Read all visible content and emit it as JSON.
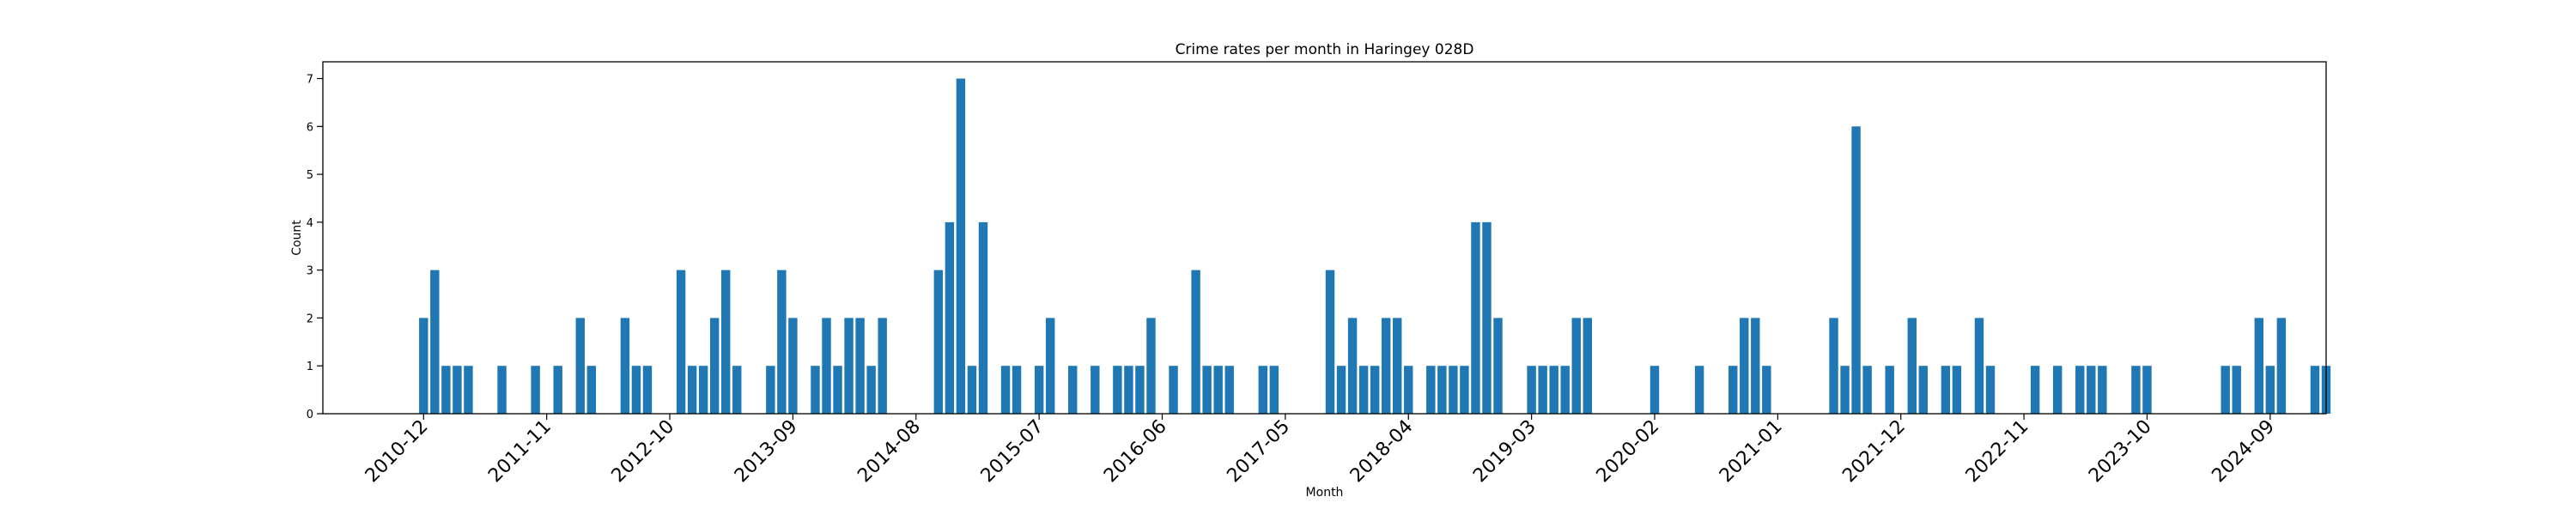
{
  "chart_data": {
    "type": "bar",
    "title": "Crime rates per month in Haringey 028D",
    "xlabel": "Month",
    "ylabel": "Count",
    "ylim": [
      0,
      7.35
    ],
    "yticks": [
      0,
      1,
      2,
      3,
      4,
      5,
      6,
      7
    ],
    "xlim": [
      -9,
      170
    ],
    "tick_labels": [
      "2010-12",
      "2011-11",
      "2012-10",
      "2013-09",
      "2014-08",
      "2015-07",
      "2016-06",
      "2017-05",
      "2018-04",
      "2019-03",
      "2020-02",
      "2021-01",
      "2021-12",
      "2022-11",
      "2023-10",
      "2024-09"
    ],
    "color": "#1f77b4",
    "bars": [
      {
        "month": "2010-12",
        "value": 2
      },
      {
        "month": "2011-01",
        "value": 3
      },
      {
        "month": "2011-02",
        "value": 1
      },
      {
        "month": "2011-03",
        "value": 1
      },
      {
        "month": "2011-04",
        "value": 1
      },
      {
        "month": "2011-07",
        "value": 1
      },
      {
        "month": "2011-10",
        "value": 1
      },
      {
        "month": "2011-12",
        "value": 1
      },
      {
        "month": "2012-02",
        "value": 2
      },
      {
        "month": "2012-03",
        "value": 1
      },
      {
        "month": "2012-06",
        "value": 2
      },
      {
        "month": "2012-07",
        "value": 1
      },
      {
        "month": "2012-08",
        "value": 1
      },
      {
        "month": "2012-11",
        "value": 3
      },
      {
        "month": "2012-12",
        "value": 1
      },
      {
        "month": "2013-01",
        "value": 1
      },
      {
        "month": "2013-02",
        "value": 2
      },
      {
        "month": "2013-03",
        "value": 3
      },
      {
        "month": "2013-04",
        "value": 1
      },
      {
        "month": "2013-07",
        "value": 1
      },
      {
        "month": "2013-08",
        "value": 3
      },
      {
        "month": "2013-09",
        "value": 2
      },
      {
        "month": "2013-11",
        "value": 1
      },
      {
        "month": "2013-12",
        "value": 2
      },
      {
        "month": "2014-01",
        "value": 1
      },
      {
        "month": "2014-02",
        "value": 2
      },
      {
        "month": "2014-03",
        "value": 2
      },
      {
        "month": "2014-04",
        "value": 1
      },
      {
        "month": "2014-05",
        "value": 2
      },
      {
        "month": "2014-10",
        "value": 3
      },
      {
        "month": "2014-11",
        "value": 4
      },
      {
        "month": "2014-12",
        "value": 7
      },
      {
        "month": "2015-01",
        "value": 1
      },
      {
        "month": "2015-02",
        "value": 4
      },
      {
        "month": "2015-04",
        "value": 1
      },
      {
        "month": "2015-05",
        "value": 1
      },
      {
        "month": "2015-07",
        "value": 1
      },
      {
        "month": "2015-08",
        "value": 2
      },
      {
        "month": "2015-10",
        "value": 1
      },
      {
        "month": "2015-12",
        "value": 1
      },
      {
        "month": "2016-02",
        "value": 1
      },
      {
        "month": "2016-03",
        "value": 1
      },
      {
        "month": "2016-04",
        "value": 1
      },
      {
        "month": "2016-05",
        "value": 2
      },
      {
        "month": "2016-07",
        "value": 1
      },
      {
        "month": "2016-09",
        "value": 3
      },
      {
        "month": "2016-10",
        "value": 1
      },
      {
        "month": "2016-11",
        "value": 1
      },
      {
        "month": "2016-12",
        "value": 1
      },
      {
        "month": "2017-03",
        "value": 1
      },
      {
        "month": "2017-04",
        "value": 1
      },
      {
        "month": "2017-09",
        "value": 3
      },
      {
        "month": "2017-10",
        "value": 1
      },
      {
        "month": "2017-11",
        "value": 2
      },
      {
        "month": "2017-12",
        "value": 1
      },
      {
        "month": "2018-01",
        "value": 1
      },
      {
        "month": "2018-02",
        "value": 2
      },
      {
        "month": "2018-03",
        "value": 2
      },
      {
        "month": "2018-04",
        "value": 1
      },
      {
        "month": "2018-06",
        "value": 1
      },
      {
        "month": "2018-07",
        "value": 1
      },
      {
        "month": "2018-08",
        "value": 1
      },
      {
        "month": "2018-09",
        "value": 1
      },
      {
        "month": "2018-10",
        "value": 4
      },
      {
        "month": "2018-11",
        "value": 4
      },
      {
        "month": "2018-12",
        "value": 2
      },
      {
        "month": "2019-03",
        "value": 1
      },
      {
        "month": "2019-04",
        "value": 1
      },
      {
        "month": "2019-05",
        "value": 1
      },
      {
        "month": "2019-06",
        "value": 1
      },
      {
        "month": "2019-07",
        "value": 2
      },
      {
        "month": "2019-08",
        "value": 2
      },
      {
        "month": "2020-02",
        "value": 1
      },
      {
        "month": "2020-06",
        "value": 1
      },
      {
        "month": "2020-09",
        "value": 1
      },
      {
        "month": "2020-10",
        "value": 2
      },
      {
        "month": "2020-11",
        "value": 2
      },
      {
        "month": "2020-12",
        "value": 1
      },
      {
        "month": "2021-06",
        "value": 2
      },
      {
        "month": "2021-07",
        "value": 1
      },
      {
        "month": "2021-08",
        "value": 6
      },
      {
        "month": "2021-09",
        "value": 1
      },
      {
        "month": "2021-11",
        "value": 1
      },
      {
        "month": "2022-01",
        "value": 2
      },
      {
        "month": "2022-02",
        "value": 1
      },
      {
        "month": "2022-04",
        "value": 1
      },
      {
        "month": "2022-05",
        "value": 1
      },
      {
        "month": "2022-07",
        "value": 2
      },
      {
        "month": "2022-08",
        "value": 1
      },
      {
        "month": "2022-12",
        "value": 1
      },
      {
        "month": "2023-02",
        "value": 1
      },
      {
        "month": "2023-04",
        "value": 1
      },
      {
        "month": "2023-05",
        "value": 1
      },
      {
        "month": "2023-06",
        "value": 1
      },
      {
        "month": "2023-09",
        "value": 1
      },
      {
        "month": "2023-10",
        "value": 1
      },
      {
        "month": "2024-05",
        "value": 1
      },
      {
        "month": "2024-06",
        "value": 1
      },
      {
        "month": "2024-08",
        "value": 2
      },
      {
        "month": "2024-09",
        "value": 1
      },
      {
        "month": "2024-10",
        "value": 2
      },
      {
        "month": "2025-01",
        "value": 1
      },
      {
        "month": "2025-02",
        "value": 1
      }
    ]
  }
}
